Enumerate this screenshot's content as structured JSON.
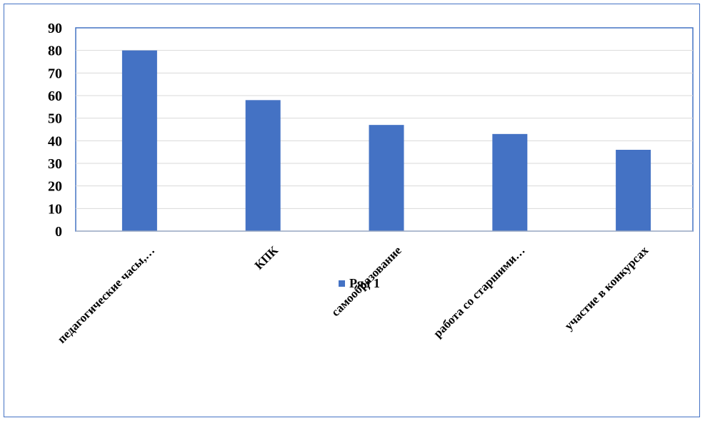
{
  "chart_data": {
    "type": "bar",
    "categories": [
      "педагогические часы,…",
      "КПК",
      "самообразование",
      "работа со старшими…",
      "участие в конкурсах"
    ],
    "series": [
      {
        "name": "Ряд 1",
        "values": [
          80,
          58,
          47,
          43,
          36
        ]
      }
    ],
    "ylim": [
      0,
      90
    ],
    "yticks": [
      0,
      10,
      20,
      30,
      40,
      50,
      60,
      70,
      80,
      90
    ],
    "grid": true,
    "legend": "bottom",
    "colors": {
      "bar": "#4472C4",
      "grid": "#d9d9d9",
      "border": "#4472C4"
    }
  }
}
